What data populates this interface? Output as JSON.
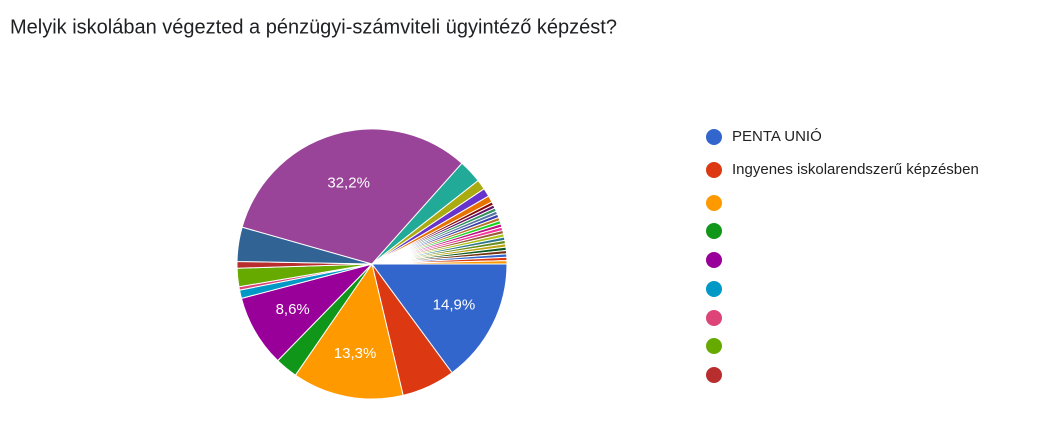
{
  "chart_data": {
    "type": "pie",
    "title": "Melyik iskolában végezted a pénzügyi-számviteli ügyintéző képzést?",
    "categories": [
      "PENTA UNIÓ",
      "Ingyenes iskolarendszerű képzésben",
      null,
      null,
      null,
      null,
      null,
      null,
      null,
      null,
      null,
      null,
      null,
      null,
      null,
      null,
      null,
      null,
      null,
      null,
      null,
      null,
      null,
      null,
      null,
      null,
      null,
      null,
      null,
      null,
      null,
      null,
      null,
      null
    ],
    "values": [
      14.9,
      6.4,
      13.3,
      2.7,
      8.6,
      1.0,
      0.4,
      2.2,
      0.8,
      4.1,
      32.2,
      2.8,
      1.2,
      1.0,
      0.8,
      0.4,
      0.4,
      0.4,
      0.4,
      0.4,
      0.4,
      0.4,
      0.4,
      0.4,
      0.4,
      0.4,
      0.4,
      0.4,
      0.4,
      0.4,
      0.4,
      0.4,
      0.4,
      0.4
    ],
    "value_labels": [
      "14,9%",
      null,
      "13,3%",
      null,
      "8,6%",
      null,
      null,
      null,
      null,
      null,
      "32,2%",
      null,
      null,
      null,
      null,
      null,
      null,
      null,
      null,
      null,
      null,
      null,
      null,
      null,
      null,
      null,
      null,
      null,
      null,
      null,
      null,
      null,
      null,
      null
    ],
    "colors": [
      "#3366cc",
      "#dc3912",
      "#ff9900",
      "#109618",
      "#990099",
      "#0099c6",
      "#dd4477",
      "#66aa00",
      "#b82e2e",
      "#316395",
      "#994499",
      "#22aa99",
      "#aaaa11",
      "#6633cc",
      "#e67300",
      "#8b0707",
      "#651067",
      "#329262",
      "#5574a6",
      "#3b3eac",
      "#b77322",
      "#16d620",
      "#b91383",
      "#f4359e",
      "#9c5935",
      "#a9c413",
      "#2a778d",
      "#668d1c",
      "#bea413",
      "#0c5922",
      "#743411",
      "#3366cc",
      "#dc3912",
      "#ff9900"
    ]
  }
}
